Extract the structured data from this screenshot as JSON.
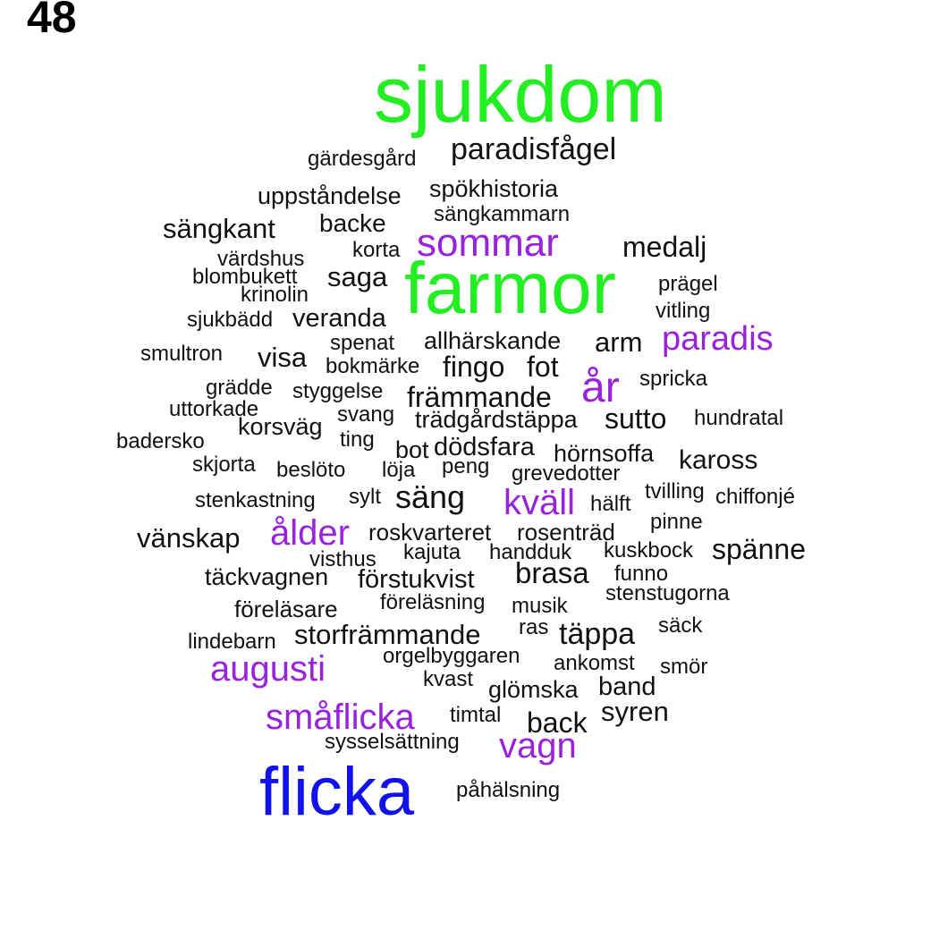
{
  "page_number": "48",
  "colors": {
    "green": "#22ee22",
    "purple": "#9922dd",
    "blue": "#1111ee",
    "black": "#111111"
  },
  "words": [
    {
      "text": "sjukdom",
      "color": "green"
    },
    {
      "text": "farmor",
      "color": "green"
    },
    {
      "text": "flicka",
      "color": "blue"
    },
    {
      "text": "sommar",
      "color": "purple"
    },
    {
      "text": "paradis",
      "color": "purple"
    },
    {
      "text": "år",
      "color": "purple"
    },
    {
      "text": "kväll",
      "color": "purple"
    },
    {
      "text": "ålder",
      "color": "purple"
    },
    {
      "text": "augusti",
      "color": "purple"
    },
    {
      "text": "småflicka",
      "color": "purple"
    },
    {
      "text": "vagn",
      "color": "purple"
    },
    {
      "text": "gärdesgård",
      "color": "black"
    },
    {
      "text": "paradisfågel",
      "color": "black"
    },
    {
      "text": "uppståndelse",
      "color": "black"
    },
    {
      "text": "spökhistoria",
      "color": "black"
    },
    {
      "text": "sängkammarn",
      "color": "black"
    },
    {
      "text": "sängkant",
      "color": "black"
    },
    {
      "text": "backe",
      "color": "black"
    },
    {
      "text": "medalj",
      "color": "black"
    },
    {
      "text": "värdshus",
      "color": "black"
    },
    {
      "text": "korta",
      "color": "black"
    },
    {
      "text": "blombukett",
      "color": "black"
    },
    {
      "text": "saga",
      "color": "black"
    },
    {
      "text": "prägel",
      "color": "black"
    },
    {
      "text": "krinolin",
      "color": "black"
    },
    {
      "text": "vitling",
      "color": "black"
    },
    {
      "text": "sjukbädd",
      "color": "black"
    },
    {
      "text": "veranda",
      "color": "black"
    },
    {
      "text": "spenat",
      "color": "black"
    },
    {
      "text": "allhärskande",
      "color": "black"
    },
    {
      "text": "arm",
      "color": "black"
    },
    {
      "text": "smultron",
      "color": "black"
    },
    {
      "text": "visa",
      "color": "black"
    },
    {
      "text": "bokmärke",
      "color": "black"
    },
    {
      "text": "fingo",
      "color": "black"
    },
    {
      "text": "fot",
      "color": "black"
    },
    {
      "text": "spricka",
      "color": "black"
    },
    {
      "text": "grädde",
      "color": "black"
    },
    {
      "text": "styggelse",
      "color": "black"
    },
    {
      "text": "främmande",
      "color": "black"
    },
    {
      "text": "uttorkade",
      "color": "black"
    },
    {
      "text": "svang",
      "color": "black"
    },
    {
      "text": "trädgårdstäppa",
      "color": "black"
    },
    {
      "text": "sutto",
      "color": "black"
    },
    {
      "text": "hundratal",
      "color": "black"
    },
    {
      "text": "korsväg",
      "color": "black"
    },
    {
      "text": "badersko",
      "color": "black"
    },
    {
      "text": "ting",
      "color": "black"
    },
    {
      "text": "bot",
      "color": "black"
    },
    {
      "text": "dödsfara",
      "color": "black"
    },
    {
      "text": "hörnsoffa",
      "color": "black"
    },
    {
      "text": "kaross",
      "color": "black"
    },
    {
      "text": "skjorta",
      "color": "black"
    },
    {
      "text": "beslöto",
      "color": "black"
    },
    {
      "text": "löja",
      "color": "black"
    },
    {
      "text": "peng",
      "color": "black"
    },
    {
      "text": "grevedotter",
      "color": "black"
    },
    {
      "text": "tvilling",
      "color": "black"
    },
    {
      "text": "chiffonjé",
      "color": "black"
    },
    {
      "text": "stenkastning",
      "color": "black"
    },
    {
      "text": "sylt",
      "color": "black"
    },
    {
      "text": "säng",
      "color": "black"
    },
    {
      "text": "hälft",
      "color": "black"
    },
    {
      "text": "pinne",
      "color": "black"
    },
    {
      "text": "vänskap",
      "color": "black"
    },
    {
      "text": "roskvarteret",
      "color": "black"
    },
    {
      "text": "rosenträd",
      "color": "black"
    },
    {
      "text": "kajuta",
      "color": "black"
    },
    {
      "text": "handduk",
      "color": "black"
    },
    {
      "text": "kuskbock",
      "color": "black"
    },
    {
      "text": "spänne",
      "color": "black"
    },
    {
      "text": "visthus",
      "color": "black"
    },
    {
      "text": "täckvagnen",
      "color": "black"
    },
    {
      "text": "förstukvist",
      "color": "black"
    },
    {
      "text": "brasa",
      "color": "black"
    },
    {
      "text": "funno",
      "color": "black"
    },
    {
      "text": "stenstugorna",
      "color": "black"
    },
    {
      "text": "föreläsning",
      "color": "black"
    },
    {
      "text": "musik",
      "color": "black"
    },
    {
      "text": "föreläsare",
      "color": "black"
    },
    {
      "text": "säck",
      "color": "black"
    },
    {
      "text": "lindebarn",
      "color": "black"
    },
    {
      "text": "storfrämmande",
      "color": "black"
    },
    {
      "text": "ras",
      "color": "black"
    },
    {
      "text": "täppa",
      "color": "black"
    },
    {
      "text": "orgelbyggaren",
      "color": "black"
    },
    {
      "text": "ankomst",
      "color": "black"
    },
    {
      "text": "smör",
      "color": "black"
    },
    {
      "text": "kvast",
      "color": "black"
    },
    {
      "text": "glömska",
      "color": "black"
    },
    {
      "text": "band",
      "color": "black"
    },
    {
      "text": "timtal",
      "color": "black"
    },
    {
      "text": "syren",
      "color": "black"
    },
    {
      "text": "back",
      "color": "black"
    },
    {
      "text": "sysselsättning",
      "color": "black"
    },
    {
      "text": "påhälsning",
      "color": "black"
    }
  ]
}
